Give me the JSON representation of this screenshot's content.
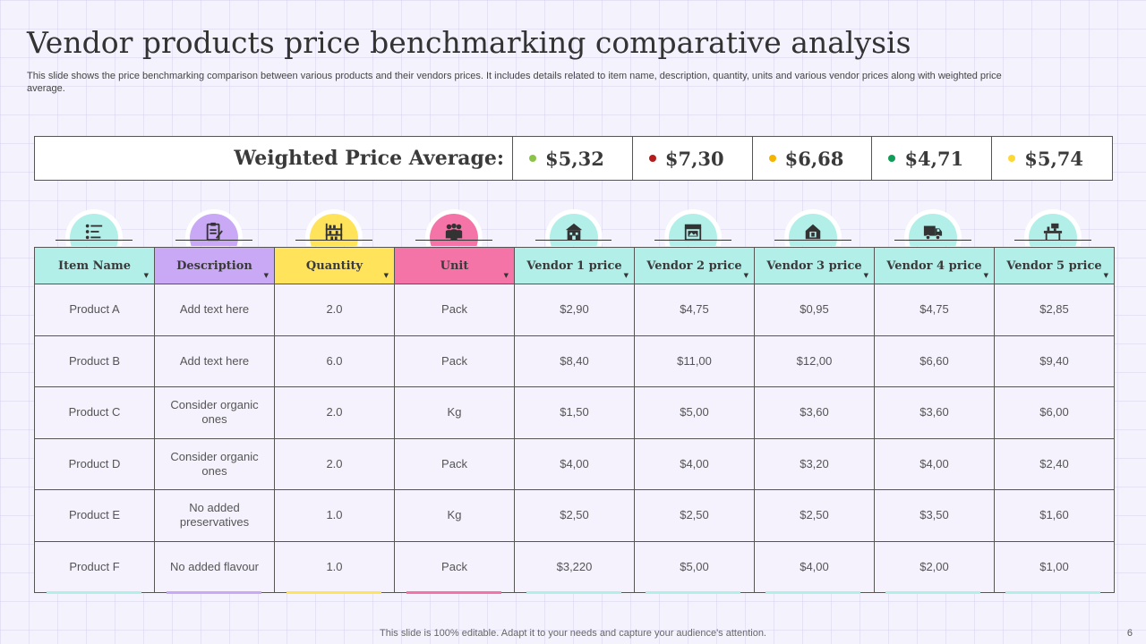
{
  "slide": {
    "title": "Vendor products price benchmarking comparative analysis",
    "subtitle": "This slide shows the price benchmarking comparison between various products and their vendors prices. It includes details related to item name, description, quantity, units and various vendor prices along with weighted price average.",
    "footer": "This slide is 100% editable. Adapt it to your needs and capture your audience's attention.",
    "page_number": "6"
  },
  "weighted": {
    "label": "Weighted Price Average:",
    "values": [
      {
        "value": "$5,32",
        "color": "#8bc34a"
      },
      {
        "value": "$7,30",
        "color": "#b71c1c"
      },
      {
        "value": "$6,68",
        "color": "#f4b400"
      },
      {
        "value": "$4,71",
        "color": "#0f9d58"
      },
      {
        "value": "$5,74",
        "color": "#fdd835"
      }
    ]
  },
  "colors": {
    "teal": "#b2efe9",
    "purple": "#c9a8f5",
    "yellow": "#ffe35a",
    "pink": "#f574a8"
  },
  "icons": [
    "list-icon",
    "clipboard-icon",
    "shelves-icon",
    "group-icon",
    "store-icon",
    "shop-front-icon",
    "home-box-icon",
    "delivery-truck-icon",
    "desk-icon"
  ],
  "table": {
    "headers": [
      "Item Name",
      "Description",
      "Quantity",
      "Unit",
      "Vendor 1 price",
      "Vendor 2 price",
      "Vendor 3 price",
      "Vendor 4 price",
      "Vendor 5 price"
    ],
    "rows": [
      [
        "Product A",
        "Add text here",
        "2.0",
        "Pack",
        "$2,90",
        "$4,75",
        "$0,95",
        "$4,75",
        "$2,85"
      ],
      [
        "Product B",
        "Add text here",
        "6.0",
        "Pack",
        "$8,40",
        "$11,00",
        "$12,00",
        "$6,60",
        "$9,40"
      ],
      [
        "Product C",
        "Consider organic ones",
        "2.0",
        "Kg",
        "$1,50",
        "$5,00",
        "$3,60",
        "$3,60",
        "$6,00"
      ],
      [
        "Product D",
        "Consider organic ones",
        "2.0",
        "Pack",
        "$4,00",
        "$4,00",
        "$3,20",
        "$4,00",
        "$2,40"
      ],
      [
        "Product E",
        "No added preservatives",
        "1.0",
        "Kg",
        "$2,50",
        "$2,50",
        "$2,50",
        "$3,50",
        "$1,60"
      ],
      [
        "Product F",
        "No added flavour",
        "1.0",
        "Pack",
        "$3,220",
        "$5,00",
        "$4,00",
        "$2,00",
        "$1,00"
      ]
    ]
  }
}
